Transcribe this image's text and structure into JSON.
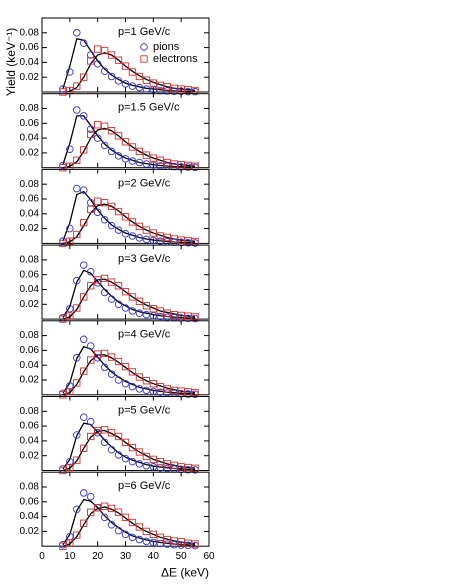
{
  "chart_data": [
    {
      "type": "scatter",
      "annotation": "p=1 GeV/c",
      "ylabel": "Yield (keV⁻¹)",
      "legend": "upper right",
      "x": [
        7.5,
        10,
        12.5,
        15,
        17.5,
        20,
        22.5,
        25,
        27.5,
        30,
        32.5,
        35,
        37.5,
        40,
        42.5,
        45,
        47.5,
        50,
        52.5,
        55
      ],
      "xlim": [
        0,
        60
      ],
      "ylim": [
        0,
        0.1
      ],
      "yticks": [
        0.02,
        0.04,
        0.06,
        0.08
      ],
      "series": [
        {
          "name": "pions",
          "color": "#3434d0",
          "marker": "circle",
          "values": [
            0.004,
            0.027,
            0.08,
            0.066,
            0.05,
            0.038,
            0.028,
            0.021,
            0.015,
            0.011,
            0.008,
            0.006,
            0.004,
            0.003,
            0.002,
            0.0015,
            0.001,
            0.001,
            0.0005,
            0.0005
          ]
        },
        {
          "name": "electrons",
          "color": "#d03030",
          "marker": "square",
          "values": [
            0,
            0.002,
            0.008,
            0.02,
            0.042,
            0.058,
            0.056,
            0.05,
            0.043,
            0.035,
            0.027,
            0.021,
            0.016,
            0.012,
            0.009,
            0.007,
            0.005,
            0.004,
            0.003,
            0.002
          ]
        }
      ],
      "fits": [
        {
          "color": "#000000",
          "values": [
            0.004,
            0.035,
            0.072,
            0.07,
            0.056,
            0.042,
            0.031,
            0.023,
            0.017,
            0.012,
            0.009,
            0.007,
            0.005,
            0.004,
            0.003,
            0.002,
            0.0015,
            0.001,
            0.0008,
            0.0006
          ]
        },
        {
          "color": "#000000",
          "values": [
            0,
            0.001,
            0.006,
            0.02,
            0.038,
            0.05,
            0.053,
            0.05,
            0.043,
            0.035,
            0.028,
            0.022,
            0.017,
            0.013,
            0.01,
            0.007,
            0.005,
            0.004,
            0.003,
            0.002
          ]
        }
      ]
    },
    {
      "type": "scatter",
      "annotation": "p=1.5 GeV/c",
      "x": [
        7.5,
        10,
        12.5,
        15,
        17.5,
        20,
        22.5,
        25,
        27.5,
        30,
        32.5,
        35,
        37.5,
        40,
        42.5,
        45,
        47.5,
        50,
        52.5,
        55
      ],
      "xlim": [
        0,
        60
      ],
      "ylim": [
        0,
        0.1
      ],
      "yticks": [
        0.02,
        0.04,
        0.06,
        0.08
      ],
      "series": [
        {
          "color": "#3434d0",
          "marker": "circle",
          "values": [
            0.003,
            0.025,
            0.078,
            0.07,
            0.052,
            0.04,
            0.03,
            0.022,
            0.016,
            0.012,
            0.009,
            0.007,
            0.005,
            0.0035,
            0.0025,
            0.002,
            0.0015,
            0.001,
            0.0008,
            0.0005
          ]
        },
        {
          "color": "#d03030",
          "marker": "square",
          "values": [
            0,
            0.002,
            0.01,
            0.024,
            0.045,
            0.058,
            0.056,
            0.05,
            0.043,
            0.035,
            0.028,
            0.022,
            0.017,
            0.013,
            0.01,
            0.007,
            0.005,
            0.004,
            0.003,
            0.002
          ]
        }
      ],
      "fits": [
        {
          "color": "#000000",
          "values": [
            0.004,
            0.033,
            0.07,
            0.07,
            0.057,
            0.043,
            0.032,
            0.024,
            0.018,
            0.013,
            0.01,
            0.007,
            0.0055,
            0.004,
            0.003,
            0.0022,
            0.0016,
            0.0012,
            0.0009,
            0.0007
          ]
        },
        {
          "color": "#000000",
          "values": [
            0,
            0.002,
            0.008,
            0.022,
            0.04,
            0.051,
            0.053,
            0.05,
            0.043,
            0.035,
            0.028,
            0.022,
            0.017,
            0.013,
            0.01,
            0.007,
            0.005,
            0.004,
            0.003,
            0.002
          ]
        }
      ]
    },
    {
      "type": "scatter",
      "annotation": "p=2 GeV/c",
      "x": [
        7.5,
        10,
        12.5,
        15,
        17.5,
        20,
        22.5,
        25,
        27.5,
        30,
        32.5,
        35,
        37.5,
        40,
        42.5,
        45,
        47.5,
        50,
        52.5,
        55
      ],
      "xlim": [
        0,
        60
      ],
      "ylim": [
        0,
        0.1
      ],
      "yticks": [
        0.02,
        0.04,
        0.06,
        0.08
      ],
      "series": [
        {
          "color": "#3434d0",
          "marker": "circle",
          "values": [
            0.003,
            0.02,
            0.074,
            0.072,
            0.055,
            0.042,
            0.032,
            0.024,
            0.018,
            0.013,
            0.01,
            0.0075,
            0.0055,
            0.004,
            0.003,
            0.0022,
            0.0016,
            0.0012,
            0.0009,
            0.0006
          ]
        },
        {
          "color": "#d03030",
          "marker": "square",
          "values": [
            0,
            0.003,
            0.012,
            0.028,
            0.046,
            0.057,
            0.055,
            0.05,
            0.043,
            0.036,
            0.029,
            0.023,
            0.018,
            0.014,
            0.01,
            0.008,
            0.006,
            0.0045,
            0.0035,
            0.0025
          ]
        }
      ],
      "fits": [
        {
          "color": "#000000",
          "values": [
            0.003,
            0.028,
            0.066,
            0.07,
            0.059,
            0.045,
            0.034,
            0.025,
            0.019,
            0.014,
            0.011,
            0.008,
            0.006,
            0.0045,
            0.0034,
            0.0025,
            0.0019,
            0.0014,
            0.001,
            0.0008
          ]
        },
        {
          "color": "#000000",
          "values": [
            0,
            0.002,
            0.009,
            0.024,
            0.041,
            0.051,
            0.053,
            0.05,
            0.044,
            0.036,
            0.029,
            0.023,
            0.018,
            0.014,
            0.011,
            0.008,
            0.006,
            0.0045,
            0.0035,
            0.0025
          ]
        }
      ]
    },
    {
      "type": "scatter",
      "annotation": "p=3 GeV/c",
      "x": [
        7.5,
        10,
        12.5,
        15,
        17.5,
        20,
        22.5,
        25,
        27.5,
        30,
        32.5,
        35,
        37.5,
        40,
        42.5,
        45,
        47.5,
        50,
        52.5,
        55
      ],
      "xlim": [
        0,
        60
      ],
      "ylim": [
        0,
        0.1
      ],
      "yticks": [
        0.02,
        0.04,
        0.06,
        0.08
      ],
      "series": [
        {
          "color": "#3434d0",
          "marker": "circle",
          "values": [
            0.002,
            0.014,
            0.052,
            0.073,
            0.064,
            0.049,
            0.036,
            0.027,
            0.02,
            0.015,
            0.011,
            0.008,
            0.006,
            0.0045,
            0.0035,
            0.0025,
            0.002,
            0.0015,
            0.001,
            0.0008
          ]
        },
        {
          "color": "#d03030",
          "marker": "square",
          "values": [
            0,
            0.004,
            0.015,
            0.03,
            0.045,
            0.053,
            0.055,
            0.05,
            0.045,
            0.037,
            0.03,
            0.024,
            0.018,
            0.014,
            0.011,
            0.008,
            0.006,
            0.005,
            0.004,
            0.003
          ]
        }
      ],
      "fits": [
        {
          "color": "#000000",
          "values": [
            0.002,
            0.017,
            0.05,
            0.066,
            0.062,
            0.051,
            0.04,
            0.031,
            0.023,
            0.018,
            0.013,
            0.01,
            0.008,
            0.006,
            0.0045,
            0.0035,
            0.0027,
            0.002,
            0.0015,
            0.0012
          ]
        },
        {
          "color": "#000000",
          "values": [
            0,
            0.003,
            0.013,
            0.03,
            0.045,
            0.053,
            0.054,
            0.05,
            0.044,
            0.037,
            0.03,
            0.024,
            0.019,
            0.015,
            0.011,
            0.009,
            0.007,
            0.005,
            0.004,
            0.003
          ]
        }
      ]
    },
    {
      "type": "scatter",
      "annotation": "p=4 GeV/c",
      "x": [
        7.5,
        10,
        12.5,
        15,
        17.5,
        20,
        22.5,
        25,
        27.5,
        30,
        32.5,
        35,
        37.5,
        40,
        42.5,
        45,
        47.5,
        50,
        52.5,
        55
      ],
      "xlim": [
        0,
        60
      ],
      "ylim": [
        0,
        0.1
      ],
      "yticks": [
        0.02,
        0.04,
        0.06,
        0.08
      ],
      "series": [
        {
          "color": "#3434d0",
          "marker": "circle",
          "values": [
            0.002,
            0.012,
            0.05,
            0.075,
            0.066,
            0.05,
            0.037,
            0.028,
            0.02,
            0.015,
            0.011,
            0.008,
            0.006,
            0.0045,
            0.0035,
            0.0025,
            0.002,
            0.0015,
            0.001,
            0.0008
          ]
        },
        {
          "color": "#d03030",
          "marker": "square",
          "values": [
            0,
            0.004,
            0.016,
            0.032,
            0.047,
            0.055,
            0.056,
            0.051,
            0.045,
            0.038,
            0.031,
            0.024,
            0.019,
            0.015,
            0.011,
            0.008,
            0.006,
            0.005,
            0.004,
            0.003
          ]
        }
      ],
      "fits": [
        {
          "color": "#000000",
          "values": [
            0.002,
            0.016,
            0.049,
            0.065,
            0.062,
            0.051,
            0.04,
            0.031,
            0.024,
            0.018,
            0.014,
            0.01,
            0.008,
            0.006,
            0.0046,
            0.0035,
            0.0027,
            0.002,
            0.0015,
            0.0012
          ]
        },
        {
          "color": "#000000",
          "values": [
            0,
            0.003,
            0.014,
            0.031,
            0.046,
            0.054,
            0.054,
            0.05,
            0.044,
            0.037,
            0.03,
            0.024,
            0.019,
            0.015,
            0.012,
            0.009,
            0.007,
            0.005,
            0.004,
            0.003
          ]
        }
      ]
    },
    {
      "type": "scatter",
      "annotation": "p=5 GeV/c",
      "x": [
        7.5,
        10,
        12.5,
        15,
        17.5,
        20,
        22.5,
        25,
        27.5,
        30,
        32.5,
        35,
        37.5,
        40,
        42.5,
        45,
        47.5,
        50,
        52.5,
        55
      ],
      "xlim": [
        0,
        60
      ],
      "ylim": [
        0,
        0.1
      ],
      "yticks": [
        0.02,
        0.04,
        0.06,
        0.08
      ],
      "series": [
        {
          "color": "#3434d0",
          "marker": "circle",
          "values": [
            0.002,
            0.012,
            0.048,
            0.072,
            0.066,
            0.051,
            0.038,
            0.028,
            0.021,
            0.016,
            0.012,
            0.009,
            0.0065,
            0.005,
            0.0035,
            0.0027,
            0.002,
            0.0015,
            0.001,
            0.0008
          ]
        },
        {
          "color": "#d03030",
          "marker": "square",
          "values": [
            0,
            0.004,
            0.014,
            0.03,
            0.046,
            0.054,
            0.055,
            0.051,
            0.046,
            0.038,
            0.031,
            0.025,
            0.019,
            0.015,
            0.012,
            0.009,
            0.007,
            0.005,
            0.004,
            0.003
          ]
        }
      ],
      "fits": [
        {
          "color": "#000000",
          "values": [
            0.002,
            0.015,
            0.047,
            0.064,
            0.062,
            0.052,
            0.041,
            0.032,
            0.024,
            0.018,
            0.014,
            0.011,
            0.008,
            0.006,
            0.0047,
            0.0036,
            0.0028,
            0.0021,
            0.0016,
            0.0012
          ]
        },
        {
          "color": "#000000",
          "values": [
            0,
            0.003,
            0.013,
            0.03,
            0.045,
            0.053,
            0.054,
            0.05,
            0.045,
            0.038,
            0.031,
            0.025,
            0.02,
            0.015,
            0.012,
            0.009,
            0.007,
            0.005,
            0.004,
            0.003
          ]
        }
      ]
    },
    {
      "type": "scatter",
      "annotation": "p=6 GeV/c",
      "xlabel": "ΔE (keV)",
      "x": [
        7.5,
        10,
        12.5,
        15,
        17.5,
        20,
        22.5,
        25,
        27.5,
        30,
        32.5,
        35,
        37.5,
        40,
        42.5,
        45,
        47.5,
        50,
        52.5,
        55
      ],
      "xlim": [
        0,
        60
      ],
      "xticks": [
        0,
        10,
        20,
        30,
        40,
        50,
        60
      ],
      "ylim": [
        0,
        0.1
      ],
      "yticks": [
        0.02,
        0.04,
        0.06,
        0.08
      ],
      "series": [
        {
          "color": "#3434d0",
          "marker": "circle",
          "values": [
            0.002,
            0.013,
            0.05,
            0.072,
            0.067,
            0.052,
            0.039,
            0.029,
            0.021,
            0.016,
            0.012,
            0.009,
            0.0065,
            0.005,
            0.0037,
            0.0028,
            0.002,
            0.0015,
            0.0011,
            0.0008
          ]
        },
        {
          "color": "#d03030",
          "marker": "square",
          "values": [
            0,
            0.004,
            0.015,
            0.031,
            0.046,
            0.052,
            0.054,
            0.051,
            0.046,
            0.039,
            0.032,
            0.026,
            0.02,
            0.016,
            0.012,
            0.009,
            0.007,
            0.006,
            0.004,
            0.003
          ]
        }
      ],
      "fits": [
        {
          "color": "#000000",
          "values": [
            0.002,
            0.016,
            0.048,
            0.063,
            0.061,
            0.052,
            0.041,
            0.032,
            0.025,
            0.019,
            0.014,
            0.011,
            0.0085,
            0.0065,
            0.005,
            0.0038,
            0.0029,
            0.0022,
            0.0017,
            0.0013
          ]
        },
        {
          "color": "#000000",
          "values": [
            0,
            0.003,
            0.013,
            0.029,
            0.044,
            0.051,
            0.053,
            0.05,
            0.045,
            0.038,
            0.031,
            0.025,
            0.02,
            0.016,
            0.012,
            0.0095,
            0.0072,
            0.0055,
            0.0042,
            0.0032
          ]
        }
      ]
    }
  ]
}
